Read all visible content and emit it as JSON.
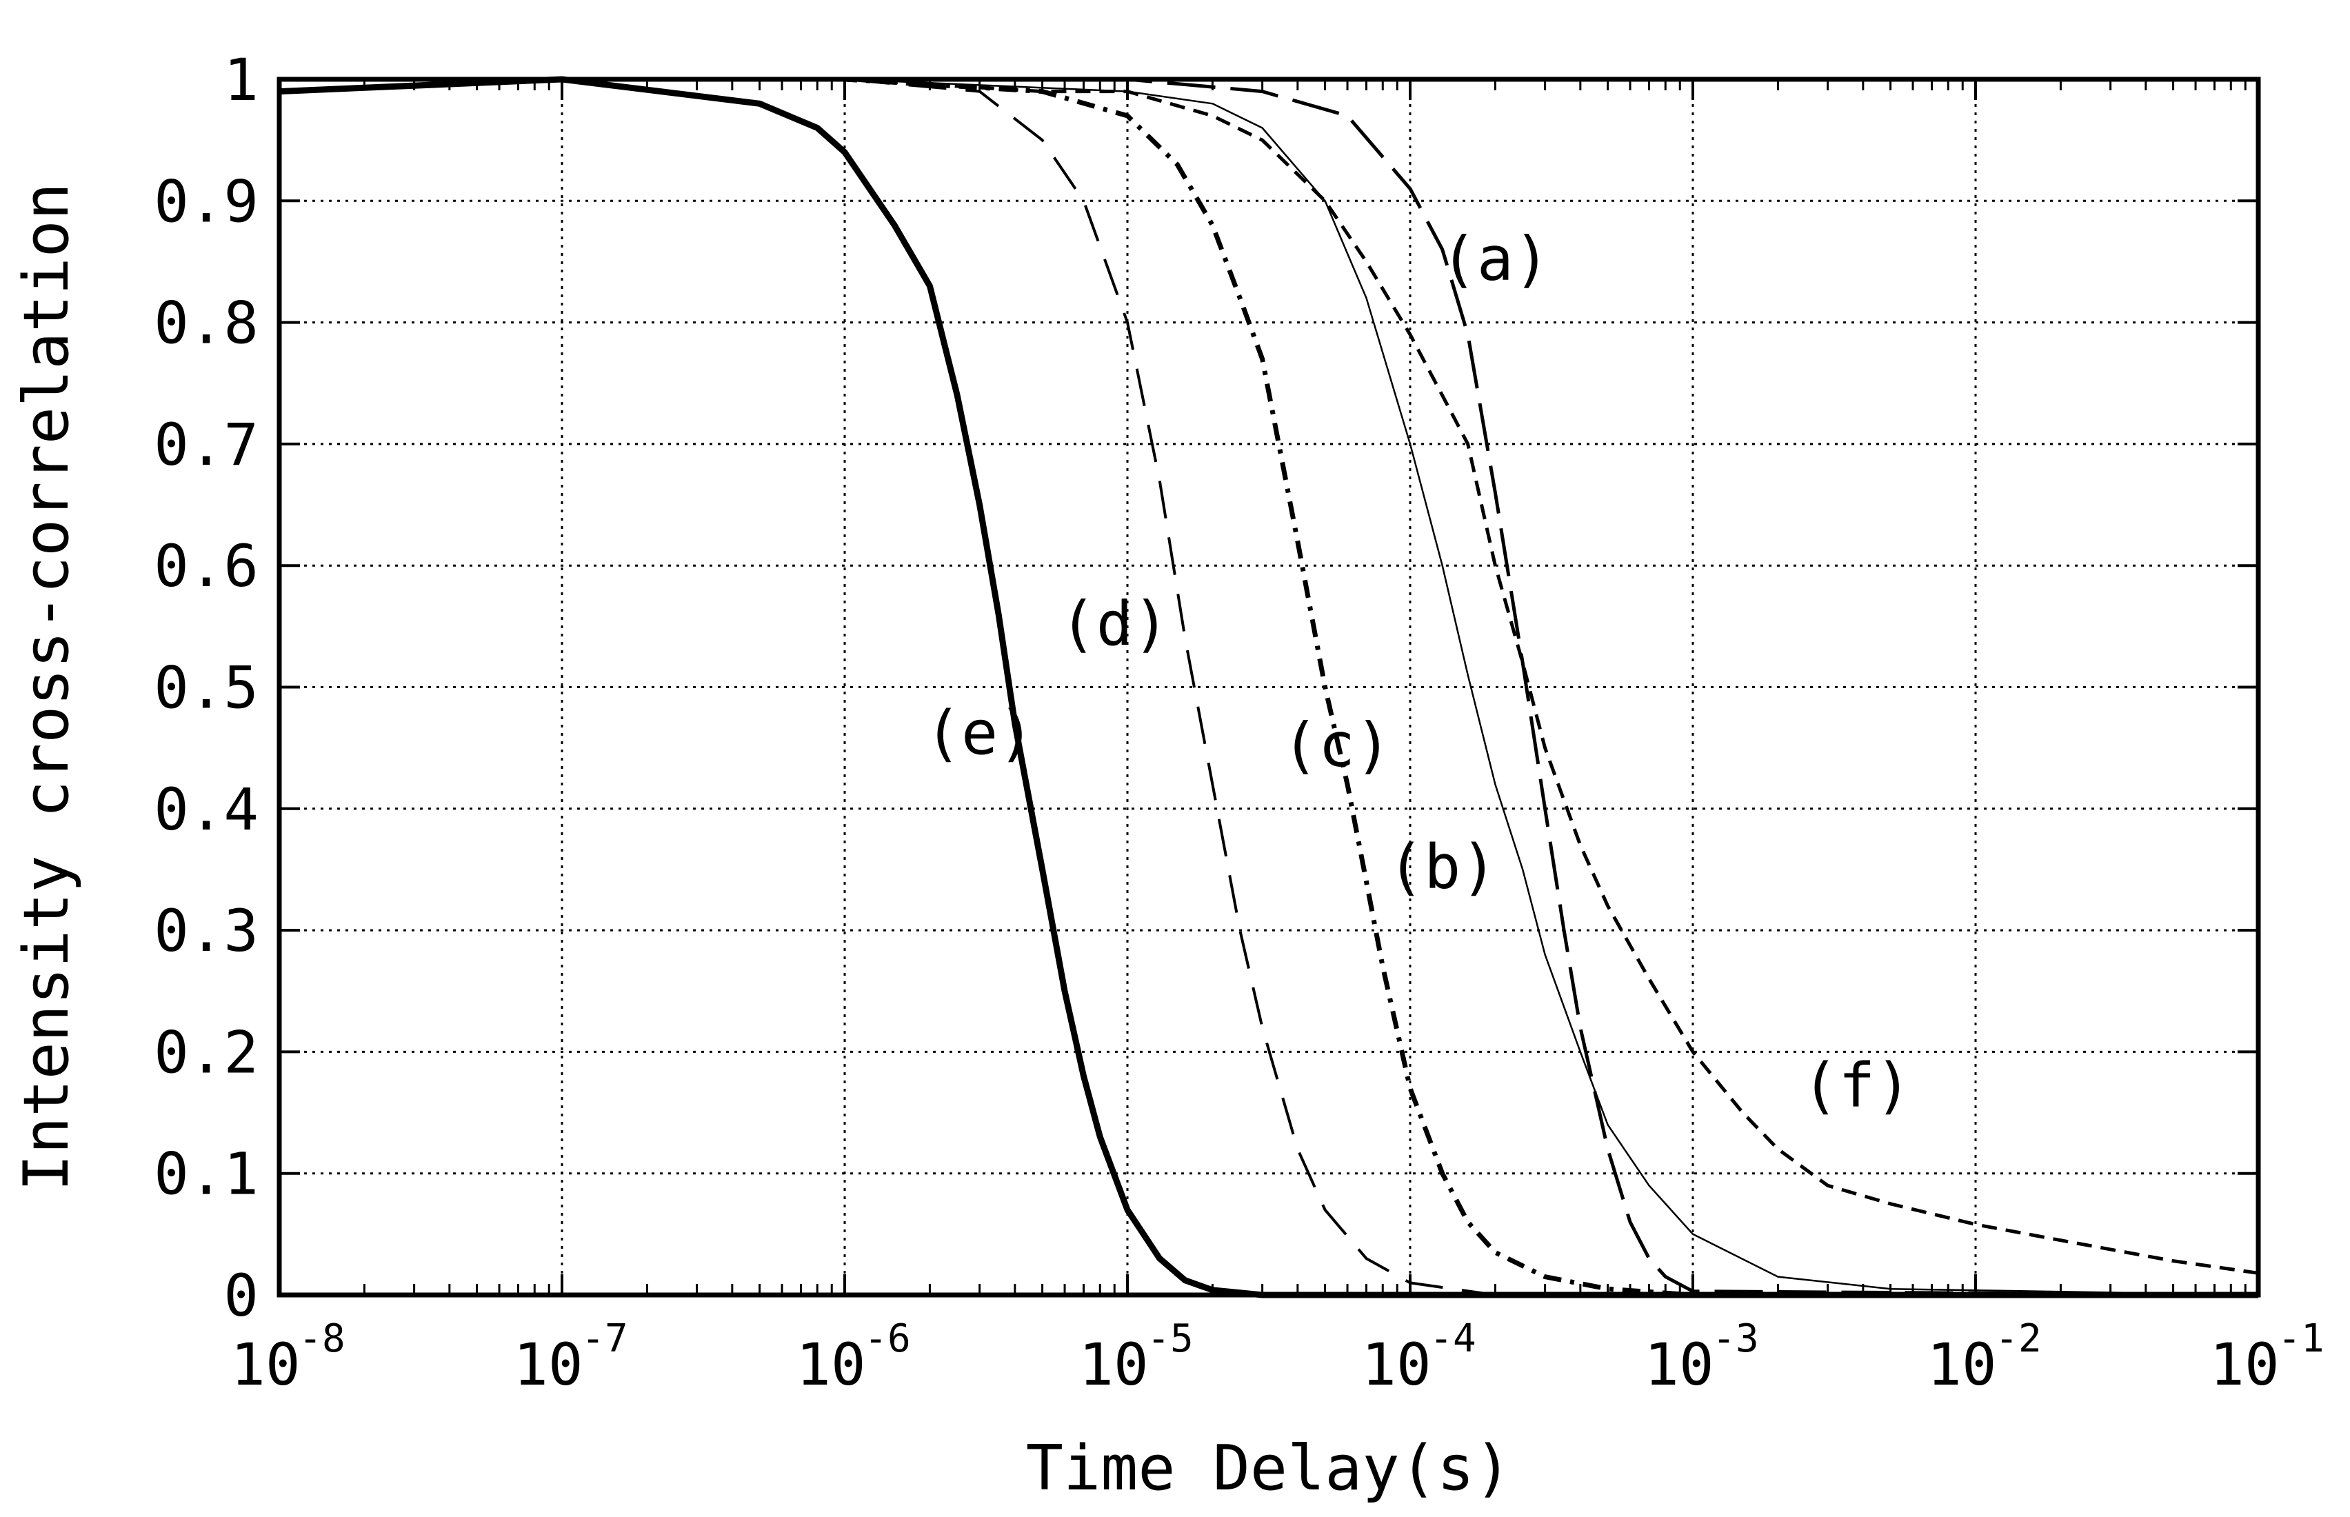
{
  "chart_data": {
    "type": "line",
    "title": "",
    "xlabel": "Time Delay(s)",
    "ylabel": "Intensity cross-correlation",
    "x_scale": "log",
    "xlim": [
      1e-08,
      0.1
    ],
    "ylim": [
      0,
      1
    ],
    "grid": true,
    "legend": "none",
    "x_ticks": [
      {
        "value": 1e-08,
        "base": "10",
        "exp": "-8"
      },
      {
        "value": 1e-07,
        "base": "10",
        "exp": "-7"
      },
      {
        "value": 1e-06,
        "base": "10",
        "exp": "-6"
      },
      {
        "value": 1e-05,
        "base": "10",
        "exp": "-5"
      },
      {
        "value": 0.0001,
        "base": "10",
        "exp": "-4"
      },
      {
        "value": 0.001,
        "base": "10",
        "exp": "-3"
      },
      {
        "value": 0.01,
        "base": "10",
        "exp": "-2"
      },
      {
        "value": 0.1,
        "base": "10",
        "exp": "-1"
      }
    ],
    "y_ticks": [
      {
        "value": 0,
        "label": "0"
      },
      {
        "value": 0.1,
        "label": "0.1"
      },
      {
        "value": 0.2,
        "label": "0.2"
      },
      {
        "value": 0.3,
        "label": "0.3"
      },
      {
        "value": 0.4,
        "label": "0.4"
      },
      {
        "value": 0.5,
        "label": "0.5"
      },
      {
        "value": 0.6,
        "label": "0.6"
      },
      {
        "value": 0.7,
        "label": "0.7"
      },
      {
        "value": 0.8,
        "label": "0.8"
      },
      {
        "value": 0.9,
        "label": "0.9"
      },
      {
        "value": 1,
        "label": "1"
      }
    ],
    "series": [
      {
        "name": "(a)",
        "style": "longdash",
        "color": "#000000",
        "x": [
          1e-08,
          1e-06,
          1e-05,
          3e-05,
          6e-05,
          0.0001,
          0.00013,
          0.00016,
          0.0002,
          0.00025,
          0.0003,
          0.00035,
          0.0004,
          0.0005,
          0.0006,
          0.0007,
          0.0008,
          0.001,
          0.1
        ],
        "y": [
          1.0,
          1.0,
          1.0,
          0.99,
          0.97,
          0.91,
          0.86,
          0.79,
          0.66,
          0.52,
          0.4,
          0.3,
          0.22,
          0.12,
          0.06,
          0.03,
          0.015,
          0.003,
          0.0
        ]
      },
      {
        "name": "(b)",
        "style": "solid",
        "color": "#000000",
        "x": [
          1e-08,
          1e-06,
          1e-05,
          2e-05,
          3e-05,
          5e-05,
          7e-05,
          0.0001,
          0.00013,
          0.00016,
          0.0002,
          0.00025,
          0.0003,
          0.0004,
          0.0005,
          0.0007,
          0.001,
          0.002,
          0.005,
          0.1
        ],
        "y": [
          1.0,
          1.0,
          0.99,
          0.98,
          0.96,
          0.9,
          0.82,
          0.7,
          0.6,
          0.51,
          0.42,
          0.35,
          0.28,
          0.2,
          0.14,
          0.09,
          0.05,
          0.015,
          0.005,
          0.0
        ]
      },
      {
        "name": "(c)",
        "style": "dashdot",
        "color": "#000000",
        "x": [
          1e-08,
          1e-06,
          5e-06,
          1e-05,
          1.5e-05,
          2e-05,
          2.5e-05,
          3e-05,
          4e-05,
          5e-05,
          6e-05,
          7e-05,
          8e-05,
          0.0001,
          0.00013,
          0.00016,
          0.0002,
          0.0003,
          0.0005,
          0.001,
          0.1
        ],
        "y": [
          1.0,
          1.0,
          0.99,
          0.97,
          0.93,
          0.88,
          0.82,
          0.77,
          0.62,
          0.5,
          0.42,
          0.34,
          0.27,
          0.17,
          0.1,
          0.06,
          0.035,
          0.015,
          0.005,
          0.0,
          0.0
        ]
      },
      {
        "name": "(d)",
        "style": "dash",
        "color": "#000000",
        "x": [
          1e-08,
          1e-06,
          3e-06,
          5e-06,
          7e-06,
          1e-05,
          1.3e-05,
          1.6e-05,
          2e-05,
          2.5e-05,
          3e-05,
          4e-05,
          5e-05,
          7e-05,
          0.0001,
          0.0002,
          0.1
        ],
        "y": [
          1.0,
          1.0,
          0.99,
          0.95,
          0.9,
          0.8,
          0.67,
          0.54,
          0.42,
          0.3,
          0.22,
          0.12,
          0.07,
          0.03,
          0.01,
          0.0,
          0.0
        ]
      },
      {
        "name": "(e)",
        "style": "thick",
        "color": "#000000",
        "x": [
          1e-08,
          1e-07,
          5e-07,
          8e-07,
          1e-06,
          1.5e-06,
          2e-06,
          2.5e-06,
          3e-06,
          3.5e-06,
          4e-06,
          5e-06,
          6e-06,
          7e-06,
          8e-06,
          1e-05,
          1.3e-05,
          1.6e-05,
          2e-05,
          3e-05,
          0.1
        ],
        "y": [
          0.99,
          1.0,
          0.98,
          0.96,
          0.94,
          0.88,
          0.83,
          0.74,
          0.65,
          0.56,
          0.47,
          0.35,
          0.25,
          0.18,
          0.13,
          0.07,
          0.03,
          0.012,
          0.004,
          0.0,
          0.0
        ]
      },
      {
        "name": "(f)",
        "style": "shortdash",
        "color": "#000000",
        "x": [
          1e-08,
          1e-06,
          5e-06,
          1e-05,
          2e-05,
          3e-05,
          5e-05,
          7e-05,
          0.0001,
          0.00013,
          0.00016,
          0.0002,
          0.00025,
          0.0003,
          0.0004,
          0.0005,
          0.0007,
          0.001,
          0.0015,
          0.002,
          0.003,
          0.005,
          0.01,
          0.02,
          0.05,
          0.1
        ],
        "y": [
          1.0,
          1.0,
          0.99,
          0.99,
          0.97,
          0.95,
          0.9,
          0.85,
          0.79,
          0.74,
          0.7,
          0.6,
          0.52,
          0.45,
          0.37,
          0.32,
          0.26,
          0.2,
          0.15,
          0.12,
          0.09,
          0.075,
          0.058,
          0.045,
          0.028,
          0.018
        ]
      }
    ],
    "annotations": [
      {
        "text": "(a)",
        "x": 0.0002,
        "y": 0.835
      },
      {
        "text": "(b)",
        "x": 0.00013,
        "y": 0.335
      },
      {
        "text": "(c)",
        "x": 5.5e-05,
        "y": 0.435
      },
      {
        "text": "(d)",
        "x": 9e-06,
        "y": 0.535
      },
      {
        "text": "(e)",
        "x": 3e-06,
        "y": 0.445
      },
      {
        "text": "(f)",
        "x": 0.0038,
        "y": 0.155
      }
    ]
  }
}
